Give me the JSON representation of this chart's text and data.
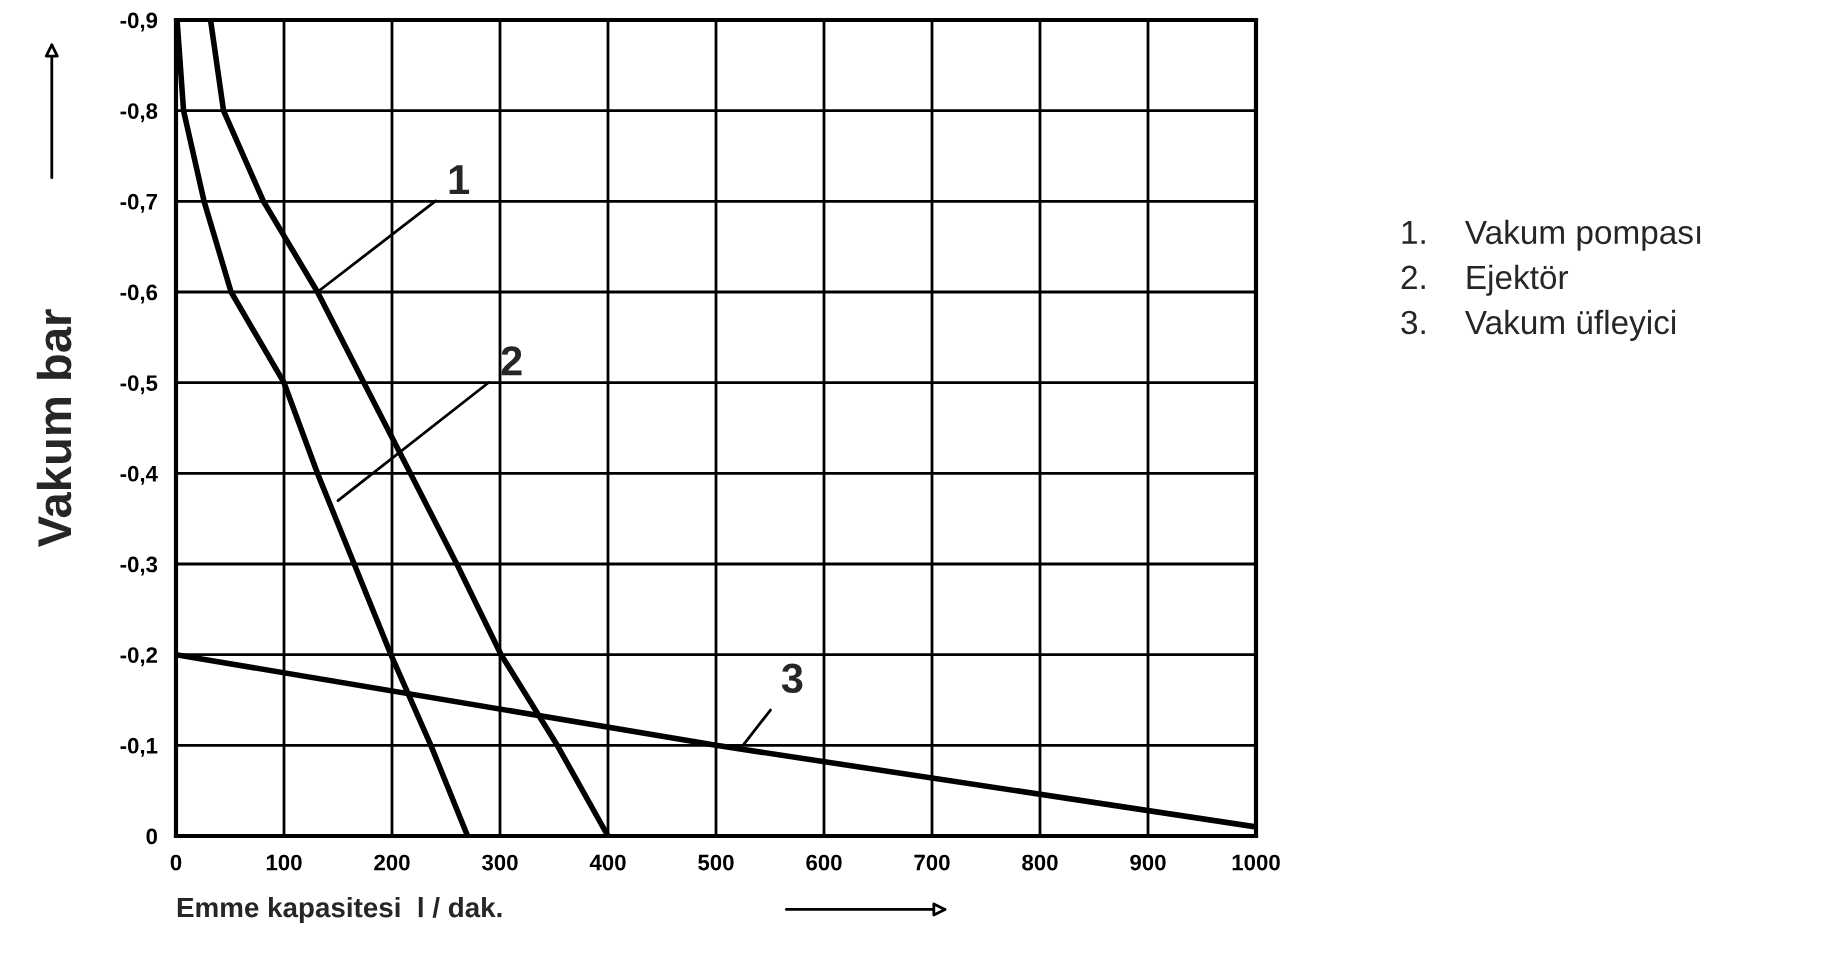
{
  "chart_data": {
    "type": "line",
    "xlabel": "Emme kapasitesi  l / dak.",
    "ylabel": "Vakum bar",
    "series": [
      {
        "color": "#000000",
        "x": [
          32,
          44,
          81,
          131,
          174,
          217,
          260,
          301,
          353,
          400
        ],
        "values": [
          -0.9,
          -0.8,
          -0.7,
          -0.6,
          -0.5,
          -0.4,
          -0.3,
          -0.2,
          -0.1,
          0
        ]
      },
      {
        "color": "#000000",
        "x": [
          1,
          7,
          26,
          51,
          100,
          131,
          165,
          199,
          236,
          270
        ],
        "values": [
          -0.9,
          -0.8,
          -0.7,
          -0.6,
          -0.5,
          -0.4,
          -0.3,
          -0.2,
          -0.1,
          0
        ]
      },
      {
        "color": "#000000",
        "x": [
          0,
          500,
          1000
        ],
        "values": [
          -0.2,
          -0.1,
          -0.01
        ]
      }
    ],
    "xlim": [
      0,
      1000
    ],
    "xticks": [
      0,
      100,
      200,
      300,
      400,
      500,
      600,
      700,
      800,
      900,
      1000
    ],
    "ylim": [
      0,
      -0.9
    ],
    "yticks": [
      0,
      {
        "value": -0.1,
        "label": "-0,1"
      },
      {
        "value": -0.2,
        "label": "-0,2"
      },
      {
        "value": -0.3,
        "label": "-0,3"
      },
      {
        "value": -0.4,
        "label": "-0,4"
      },
      {
        "value": -0.5,
        "label": "-0,5"
      },
      {
        "value": -0.6,
        "label": "-0,6"
      },
      {
        "value": -0.7,
        "label": "-0,7"
      },
      {
        "value": -0.8,
        "label": "-0,8"
      },
      {
        "value": -0.9,
        "label": "-0,9"
      }
    ],
    "grid": true,
    "marker": "none",
    "line_style": "solid",
    "legend": false,
    "annotations": [
      {
        "text": "1",
        "x": 131,
        "y": -0.6
      },
      {
        "text": "2",
        "x": 150,
        "y": -0.37
      },
      {
        "text": "3",
        "x": 525,
        "y": -0.1
      },
      "1.    Vakum pompası",
      "2.    Ejektör",
      "3.    Vakum üfleyici"
    ]
  }
}
